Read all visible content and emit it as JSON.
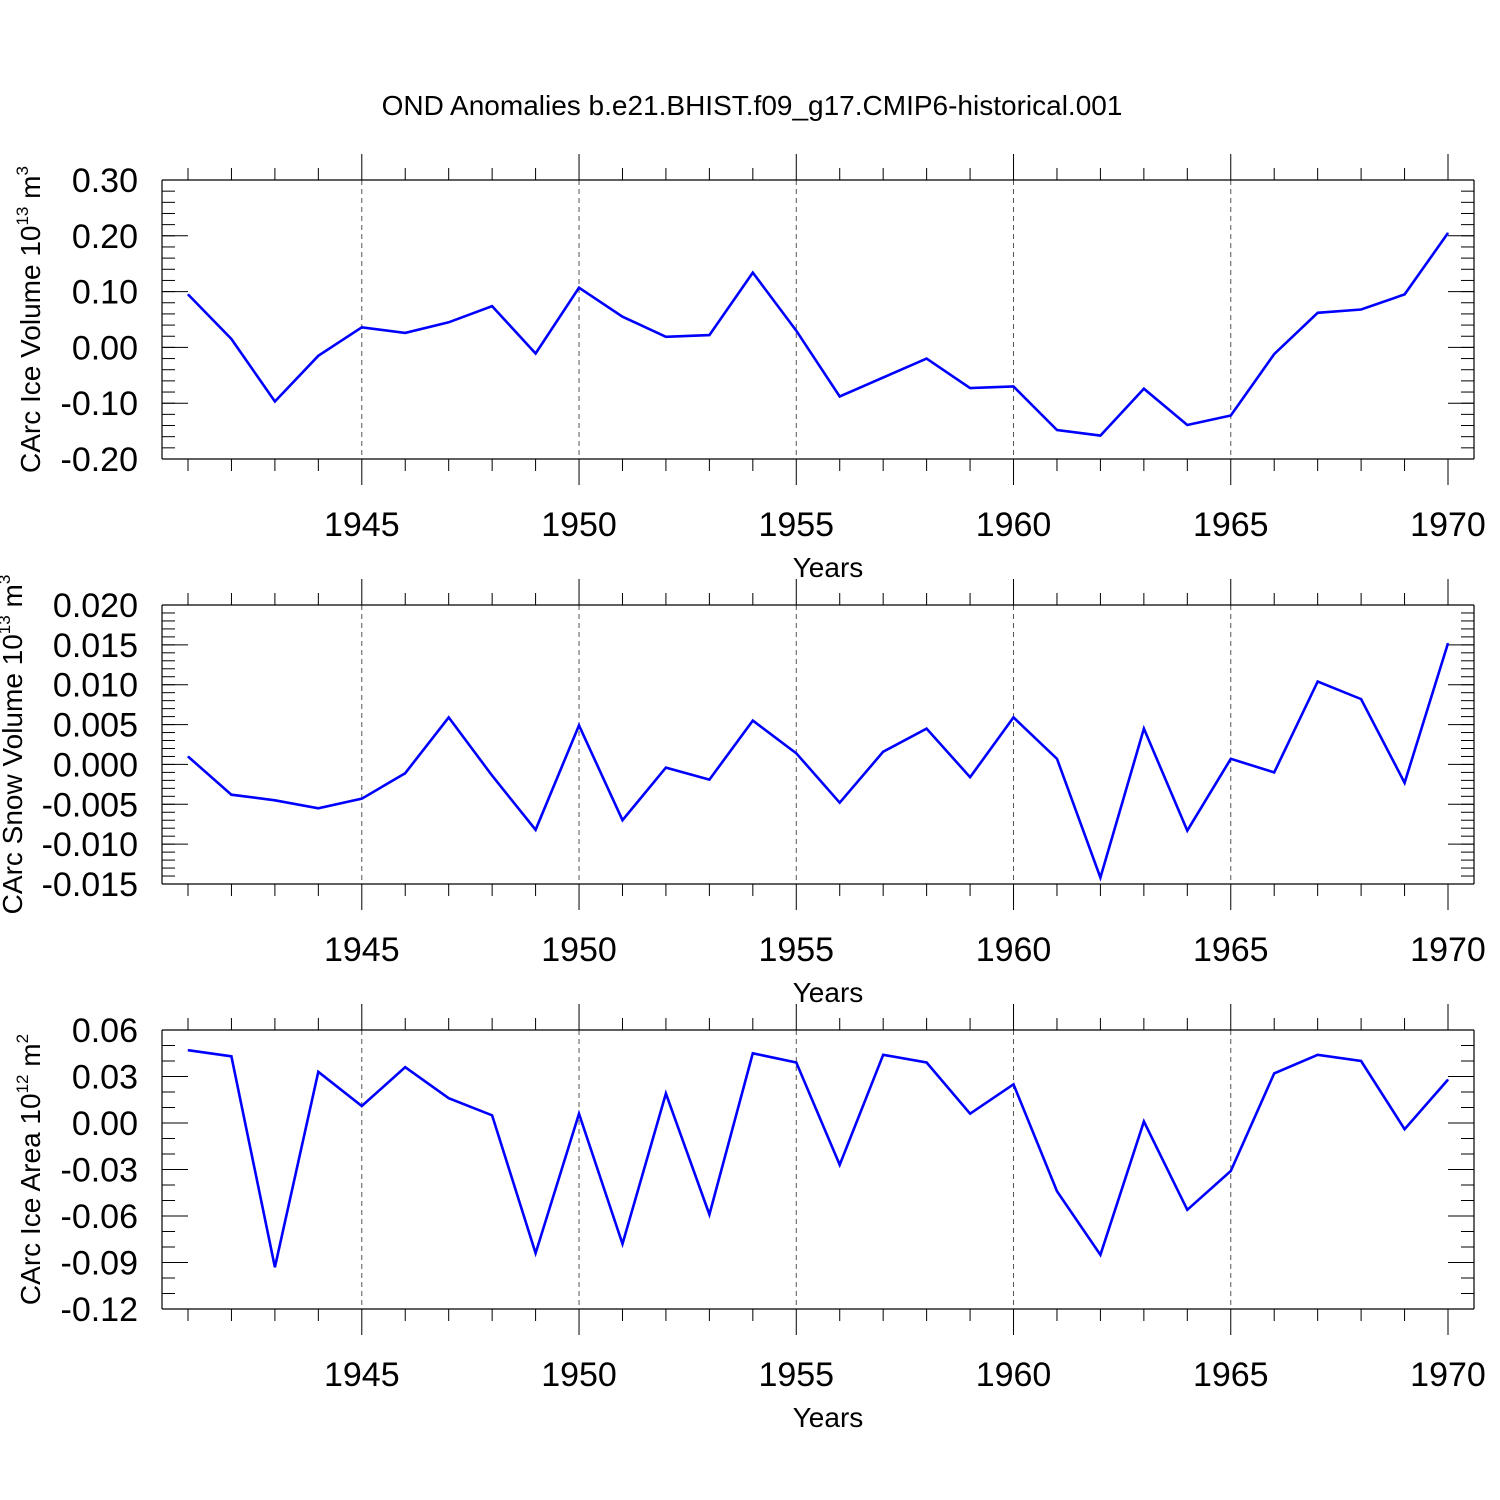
{
  "title": "OND Anomalies b.e21.BHIST.f09_g17.CMIP6-historical.001",
  "line_color": "#0000ff",
  "chart_data": [
    {
      "type": "line",
      "title": "OND Anomalies b.e21.BHIST.f09_g17.CMIP6-historical.001",
      "xlabel": "Years",
      "ylabel_main": "CArc Ice Volume 10",
      "ylabel_exp": "13",
      "ylabel_unit": " m",
      "ylabel_unit_exp": "3",
      "xlim": [
        1941,
        1970
      ],
      "ylim": [
        -0.2,
        0.3
      ],
      "xticks": [
        1945,
        1950,
        1955,
        1960,
        1965,
        1970
      ],
      "yticks": [
        -0.2,
        -0.1,
        0.0,
        0.1,
        0.2,
        0.3
      ],
      "ytick_labels": [
        "-0.20",
        "-0.10",
        "0.00",
        "0.10",
        "0.20",
        "0.30"
      ],
      "ytick_minor_step": 0.02,
      "grid": "vertical dashed at major x ticks",
      "series": [
        {
          "name": "CArc Ice Volume",
          "x": [
            1941,
            1942,
            1943,
            1944,
            1945,
            1946,
            1947,
            1948,
            1949,
            1950,
            1951,
            1952,
            1953,
            1954,
            1955,
            1956,
            1957,
            1958,
            1959,
            1960,
            1961,
            1962,
            1963,
            1964,
            1965,
            1966,
            1967,
            1968,
            1969,
            1970
          ],
          "values": [
            0.095,
            0.015,
            -0.097,
            -0.015,
            0.036,
            0.026,
            0.045,
            0.074,
            -0.011,
            0.107,
            0.055,
            0.019,
            0.022,
            0.134,
            0.03,
            -0.088,
            -0.054,
            -0.02,
            -0.073,
            -0.07,
            -0.148,
            -0.158,
            -0.074,
            -0.139,
            -0.122,
            -0.012,
            0.062,
            0.068,
            0.095,
            0.205
          ]
        }
      ]
    },
    {
      "type": "line",
      "xlabel": "Years",
      "ylabel_main": "CArc Snow Volume 10",
      "ylabel_exp": "13",
      "ylabel_unit": " m",
      "ylabel_unit_exp": "3",
      "xlim": [
        1941,
        1970
      ],
      "ylim": [
        -0.015,
        0.02
      ],
      "xticks": [
        1945,
        1950,
        1955,
        1960,
        1965,
        1970
      ],
      "yticks": [
        -0.015,
        -0.01,
        -0.005,
        0.0,
        0.005,
        0.01,
        0.015,
        0.02
      ],
      "ytick_labels": [
        "-0.015",
        "-0.010",
        "-0.005",
        "0.000",
        "0.005",
        "0.010",
        "0.015",
        "0.020"
      ],
      "ytick_minor_step": 0.001,
      "grid": "vertical dashed at major x ticks",
      "series": [
        {
          "name": "CArc Snow Volume",
          "x": [
            1941,
            1942,
            1943,
            1944,
            1945,
            1946,
            1947,
            1948,
            1949,
            1950,
            1951,
            1952,
            1953,
            1954,
            1955,
            1956,
            1957,
            1958,
            1959,
            1960,
            1961,
            1962,
            1963,
            1964,
            1965,
            1966,
            1967,
            1968,
            1969,
            1970
          ],
          "values": [
            0.001,
            -0.0038,
            -0.0045,
            -0.0055,
            -0.0043,
            -0.0011,
            0.0059,
            -0.0014,
            -0.0082,
            0.0049,
            -0.007,
            -0.0004,
            -0.0019,
            0.0055,
            0.0014,
            -0.0048,
            0.0016,
            0.0045,
            -0.0016,
            0.0059,
            0.0007,
            -0.0142,
            0.0045,
            -0.0083,
            0.0007,
            -0.001,
            0.0104,
            0.0082,
            -0.0023,
            0.0152
          ]
        }
      ]
    },
    {
      "type": "line",
      "xlabel": "Years",
      "ylabel_main": "CArc Ice Area 10",
      "ylabel_exp": "12",
      "ylabel_unit": " m",
      "ylabel_unit_exp": "2",
      "xlim": [
        1941,
        1970
      ],
      "ylim": [
        -0.12,
        0.06
      ],
      "xticks": [
        1945,
        1950,
        1955,
        1960,
        1965,
        1970
      ],
      "yticks": [
        -0.12,
        -0.09,
        -0.06,
        -0.03,
        0.0,
        0.03,
        0.06
      ],
      "ytick_labels": [
        "-0.12",
        "-0.09",
        "-0.06",
        "-0.03",
        "0.00",
        "0.03",
        "0.06"
      ],
      "ytick_minor_step": 0.01,
      "grid": "vertical dashed at major x ticks",
      "series": [
        {
          "name": "CArc Ice Area",
          "x": [
            1941,
            1942,
            1943,
            1944,
            1945,
            1946,
            1947,
            1948,
            1949,
            1950,
            1951,
            1952,
            1953,
            1954,
            1955,
            1956,
            1957,
            1958,
            1959,
            1960,
            1961,
            1962,
            1963,
            1964,
            1965,
            1966,
            1967,
            1968,
            1969,
            1970
          ],
          "values": [
            0.047,
            0.043,
            -0.093,
            0.033,
            0.011,
            0.036,
            0.016,
            0.005,
            -0.084,
            0.006,
            -0.078,
            0.019,
            -0.059,
            0.045,
            0.039,
            -0.027,
            0.044,
            0.039,
            0.006,
            0.025,
            -0.044,
            -0.085,
            0.001,
            -0.056,
            -0.031,
            0.032,
            0.044,
            0.04,
            -0.004,
            0.028
          ]
        }
      ]
    }
  ]
}
